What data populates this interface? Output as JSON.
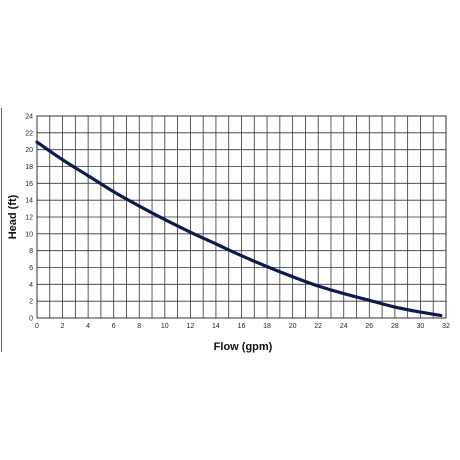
{
  "chart_data": {
    "type": "line",
    "xlabel": "Flow (gpm)",
    "ylabel": "Head (ft)",
    "xlim": [
      0,
      32
    ],
    "ylim": [
      0,
      24
    ],
    "x_ticks": [
      0,
      2,
      4,
      6,
      8,
      10,
      12,
      14,
      16,
      18,
      20,
      22,
      24,
      26,
      28,
      30,
      32
    ],
    "y_ticks": [
      0,
      2,
      4,
      6,
      8,
      10,
      12,
      14,
      16,
      18,
      20,
      22,
      24
    ],
    "grid": true,
    "line_color": "#0d1a4d",
    "series": [
      {
        "x": [
          0,
          2,
          4,
          6,
          8,
          10,
          12,
          14,
          16,
          18,
          20,
          22,
          24,
          26,
          28,
          30,
          31.6
        ],
        "values": [
          20.9,
          18.8,
          16.9,
          15.0,
          13.3,
          11.7,
          10.2,
          8.8,
          7.4,
          6.1,
          4.9,
          3.8,
          2.9,
          2.1,
          1.3,
          0.7,
          0.3
        ]
      }
    ]
  }
}
